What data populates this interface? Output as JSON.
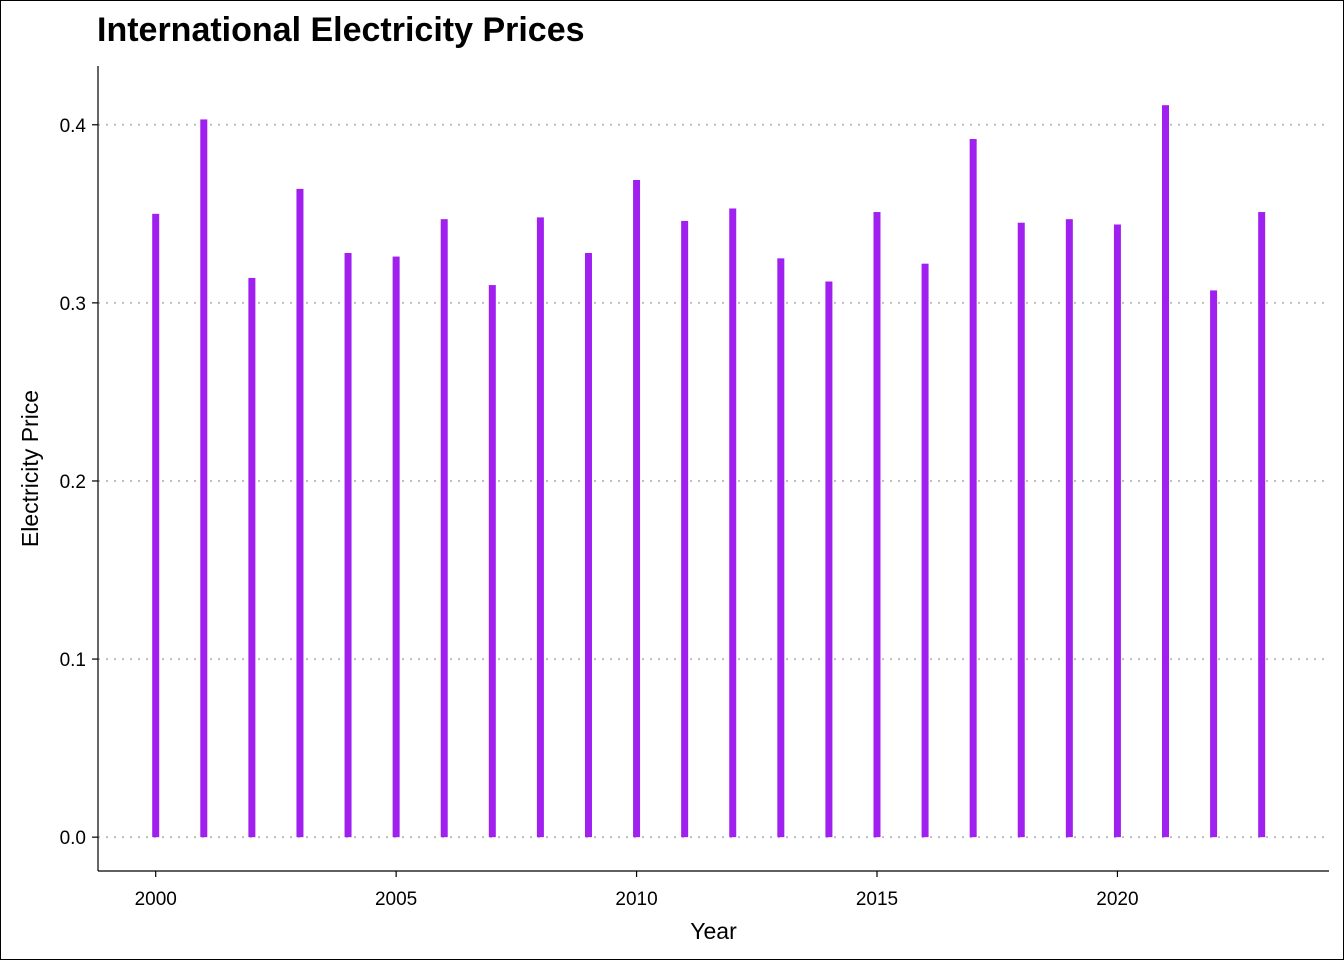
{
  "chart_data": {
    "type": "bar",
    "title": "International Electricity Prices",
    "xlabel": "Year",
    "ylabel": "Electricity Price",
    "categories": [
      2000,
      2001,
      2002,
      2003,
      2004,
      2005,
      2006,
      2007,
      2008,
      2009,
      2010,
      2011,
      2012,
      2013,
      2014,
      2015,
      2016,
      2017,
      2018,
      2019,
      2020,
      2021,
      2022,
      2023
    ],
    "values": [
      0.35,
      0.403,
      0.314,
      0.364,
      0.328,
      0.326,
      0.347,
      0.31,
      0.348,
      0.328,
      0.369,
      0.346,
      0.353,
      0.325,
      0.312,
      0.351,
      0.322,
      0.392,
      0.345,
      0.347,
      0.344,
      0.411,
      0.307,
      0.351
    ],
    "x_ticks": [
      "2000",
      "2005",
      "2010",
      "2015",
      "2020"
    ],
    "x_tick_values": [
      2000,
      2005,
      2010,
      2015,
      2020
    ],
    "y_ticks": [
      "0.0",
      "0.1",
      "0.2",
      "0.3",
      "0.4"
    ],
    "y_tick_values": [
      0,
      0.1,
      0.2,
      0.3,
      0.4
    ],
    "xlim": [
      1998.8,
      2024.4
    ],
    "ylim": [
      -0.019,
      0.433
    ],
    "grid": "horizontal-dotted",
    "legend": "none",
    "bar_color": "#A020F0",
    "grid_color": "#BEBEBE"
  }
}
